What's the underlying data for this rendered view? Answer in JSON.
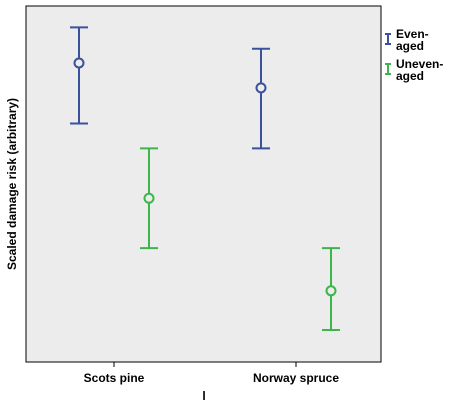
{
  "chart_data": {
    "type": "scatter",
    "subtype": "error-bar",
    "categories": [
      "Scots pine",
      "Norway spruce"
    ],
    "xlabel": "l",
    "ylabel": "Scaled damage risk (arbitrary)",
    "ylim": [
      0,
      1
    ],
    "grid": false,
    "y_ticks_shown": false,
    "legend_position": "right",
    "plot_background": "#ececec",
    "series": [
      {
        "name": "Even-aged",
        "color": "#3a519c",
        "points": [
          {
            "category": "Scots pine",
            "mean": 0.84,
            "lower": 0.67,
            "upper": 0.94
          },
          {
            "category": "Norway spruce",
            "mean": 0.77,
            "lower": 0.6,
            "upper": 0.88
          }
        ]
      },
      {
        "name": "Uneven-aged",
        "color": "#3cb64a",
        "points": [
          {
            "category": "Scots pine",
            "mean": 0.46,
            "lower": 0.32,
            "upper": 0.6
          },
          {
            "category": "Norway spruce",
            "mean": 0.2,
            "lower": 0.09,
            "upper": 0.32
          }
        ]
      }
    ],
    "legend": [
      {
        "line1": "Even-",
        "line2": "aged"
      },
      {
        "line1": "Uneven-",
        "line2": "aged"
      }
    ]
  }
}
